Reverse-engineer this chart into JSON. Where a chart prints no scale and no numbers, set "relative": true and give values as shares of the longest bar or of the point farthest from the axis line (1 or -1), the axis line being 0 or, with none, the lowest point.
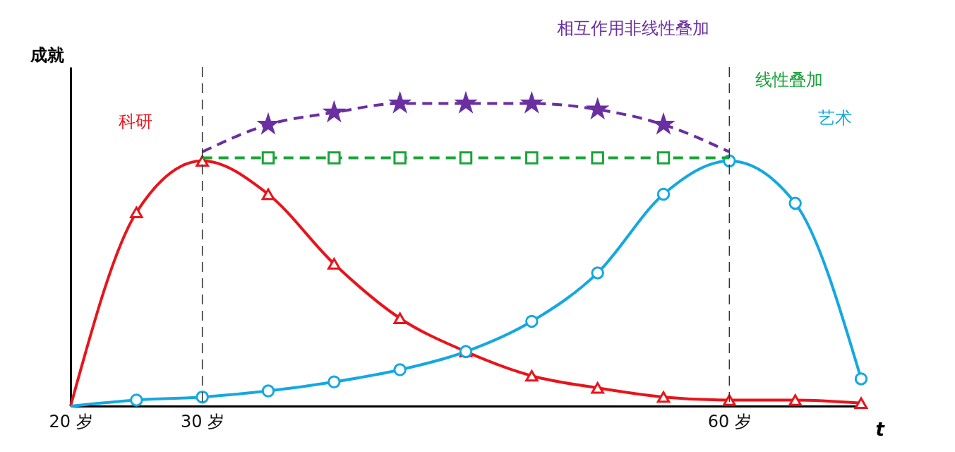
{
  "chart_data": {
    "type": "line",
    "relative": true,
    "xlabel": "t",
    "ylabel": "成就",
    "categories": [
      "20 岁",
      null,
      "30 岁",
      null,
      null,
      null,
      null,
      null,
      null,
      null,
      "60 岁",
      null,
      null
    ],
    "series": [
      {
        "name": "科研",
        "color": "#e8141b",
        "marker": "triangle",
        "line_style": "solid",
        "values": [
          0,
          0.64,
          0.81,
          0.7,
          0.47,
          0.29,
          0.18,
          0.1,
          0.06,
          0.03,
          0.02,
          0.02,
          0.01
        ]
      },
      {
        "name": "艺术",
        "color": "#15a8e0",
        "marker": "circle",
        "line_style": "solid",
        "values": [
          0,
          0.02,
          0.03,
          0.05,
          0.08,
          0.12,
          0.18,
          0.28,
          0.44,
          0.7,
          0.81,
          0.67,
          0.09
        ]
      },
      {
        "name": "线性叠加",
        "color": "#1aa33a",
        "marker": "square",
        "line_style": "dashed",
        "values": [
          null,
          null,
          0.82,
          0.82,
          0.82,
          0.82,
          0.82,
          0.82,
          0.82,
          0.82,
          0.82,
          null,
          null
        ]
      },
      {
        "name": "相互作用非线性叠加",
        "color": "#6a2fa0",
        "marker": "star",
        "line_style": "dashed",
        "values": [
          null,
          null,
          0.84,
          0.93,
          0.97,
          1,
          1,
          1,
          0.98,
          0.93,
          0.84,
          null,
          null
        ]
      }
    ],
    "ref_lines": [
      {
        "axis": "x",
        "value": "30 岁",
        "line_style": "dashed",
        "color": "#333333"
      },
      {
        "axis": "x",
        "value": "60 岁",
        "line_style": "dashed",
        "color": "#333333"
      }
    ]
  }
}
